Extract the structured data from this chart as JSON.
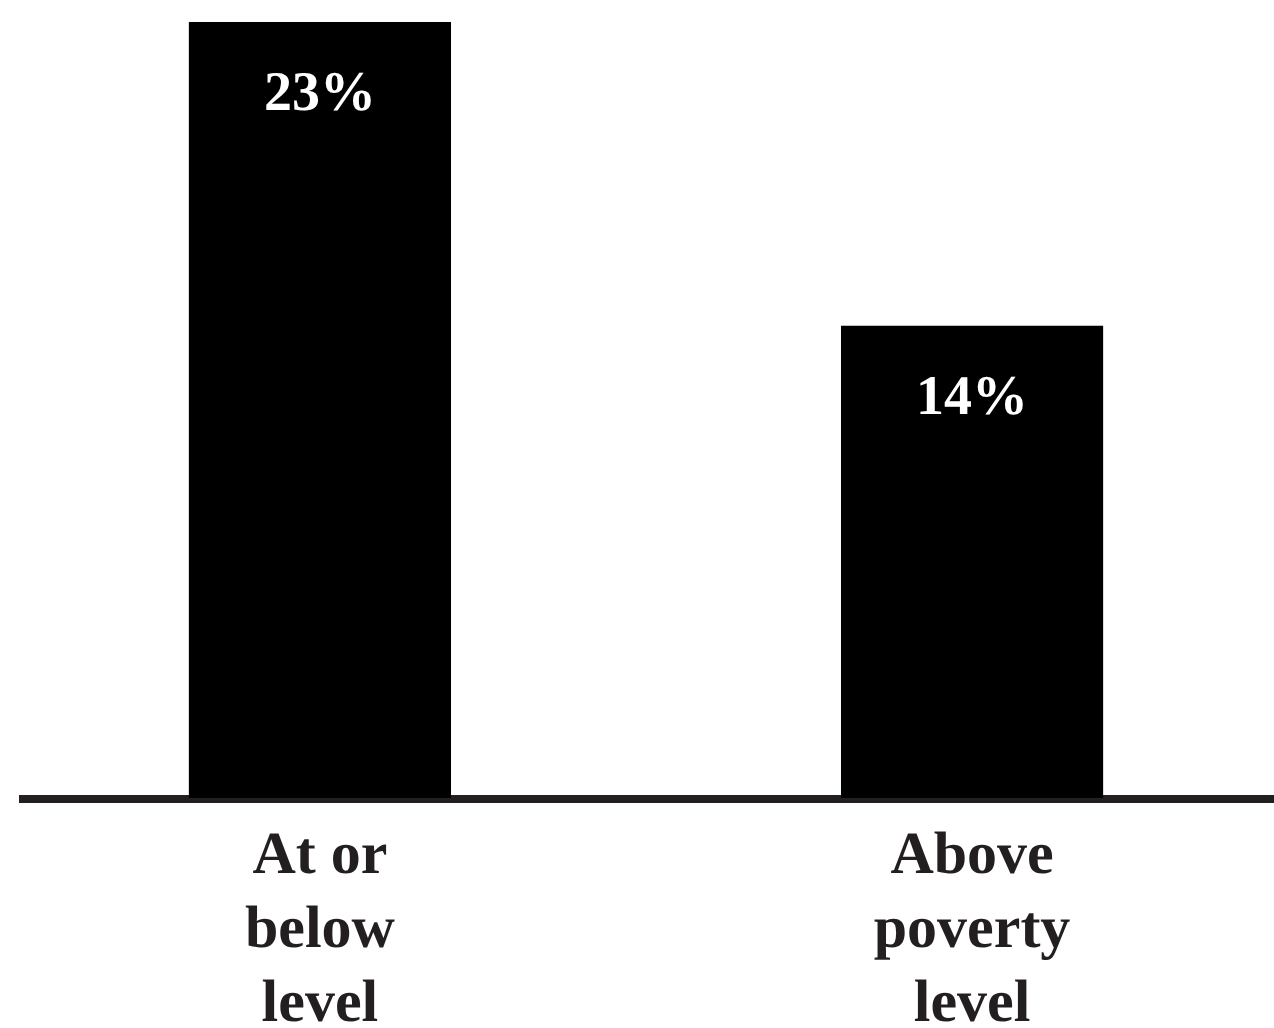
{
  "chart_data": {
    "type": "bar",
    "categories": [
      "At or below level",
      "Above poverty level"
    ],
    "values": [
      23,
      14
    ],
    "colors": [
      "#000000",
      "#000000"
    ],
    "value_labels": [
      "23%",
      "14%"
    ]
  }
}
